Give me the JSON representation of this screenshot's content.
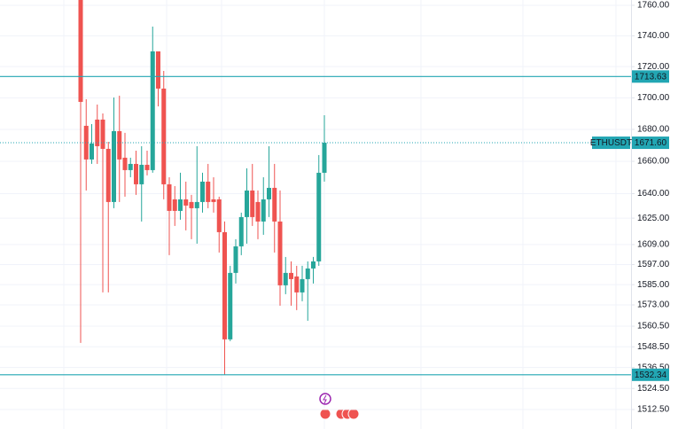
{
  "chart_data": {
    "type": "candlestick",
    "log_scale": true,
    "grid": true,
    "up_color": "#26a69a",
    "down_color": "#ef5350",
    "line_color": "#22a6b3",
    "ylim": [
      1501.5,
      1763.5
    ],
    "yticks": [
      {
        "value": 1760,
        "label": "1760.00"
      },
      {
        "value": 1740,
        "label": "1740.00"
      },
      {
        "value": 1720,
        "label": "1720.00"
      },
      {
        "value": 1700,
        "label": "1700.00"
      },
      {
        "value": 1680,
        "label": "1680.00"
      },
      {
        "value": 1660,
        "label": "1660.00"
      },
      {
        "value": 1640,
        "label": "1640.00"
      },
      {
        "value": 1625,
        "label": "1625.00"
      },
      {
        "value": 1609,
        "label": "1609.00"
      },
      {
        "value": 1597,
        "label": "1597.00"
      },
      {
        "value": 1585,
        "label": "1585.00"
      },
      {
        "value": 1573,
        "label": "1573.00"
      },
      {
        "value": 1560.5,
        "label": "1560.50"
      },
      {
        "value": 1548.5,
        "label": "1548.50"
      },
      {
        "value": 1536.5,
        "label": "1536.50"
      },
      {
        "value": 1524.5,
        "label": "1524.50"
      },
      {
        "value": 1512.5,
        "label": "1512.50"
      }
    ],
    "price_lines": [
      {
        "value": 1713.63,
        "style": "solid"
      },
      {
        "name": "ETHUSDT",
        "value": 1671.6,
        "label": "1671.60",
        "style": "dotted"
      },
      {
        "value": 1532.34,
        "style": "solid"
      }
    ],
    "open": [
      1763.5,
      1682.25,
      1661.15,
      1686.17,
      1686.17,
      1667.78,
      1634.87,
      1678.9,
      1662.25,
      1654.54,
      1658.39,
      1645.76,
      1657.84,
      1654.54,
      1729.85,
      1705.89,
      1645.76,
      1636.5,
      1629.44,
      1636.5,
      1634.87,
      1631.07,
      1634.87,
      1647.41,
      1636.5,
      1636.5,
      1616.5,
      1552.81,
      1591.99,
      1607.93,
      1625.66,
      1641.94,
      1634.87,
      1622.96,
      1636.5,
      1643.58,
      1622.96,
      1584.6,
      1591.99,
      1589.87,
      1580.39,
      1588.29,
      1594.63,
      1598.88,
      1652.89
    ],
    "high": [
      1763.5,
      1699.1,
      1683.37,
      1695.72,
      1690.09,
      1672.22,
      1700.23,
      1701.36,
      1677.79,
      1662.25,
      1666.67,
      1669.44,
      1666.67,
      1746.02,
      1729.85,
      1717.26,
      1650.14,
      1644.67,
      1652.89,
      1647.41,
      1639.22,
      1669.44,
      1652.89,
      1658.39,
      1650.14,
      1638.13,
      1622.96,
      1596.22,
      1612.21,
      1628.36,
      1655.64,
      1658.39,
      1641.94,
      1650.14,
      1669.44,
      1658.39,
      1641.94,
      1601.53,
      1598.88,
      1596.22,
      1596.22,
      1598.88,
      1601.53,
      1663.91,
      1688.97
    ],
    "low": [
      1550.75,
      1641.94,
      1658.39,
      1658.39,
      1580.39,
      1580.39,
      1631.07,
      1634.87,
      1638.13,
      1650.14,
      1639.22,
      1622.96,
      1651.24,
      1652.89,
      1694.59,
      1636.5,
      1602.6,
      1620.27,
      1624.04,
      1617.58,
      1612.21,
      1609.54,
      1628.36,
      1631.07,
      1628.36,
      1604.2,
      1532.34,
      1551.78,
      1585.65,
      1602.6,
      1609.54,
      1620.27,
      1612.21,
      1614.89,
      1625.66,
      1604.2,
      1572.54,
      1579.34,
      1572.54,
      1569.93,
      1575.15,
      1563.68,
      1585.65,
      1596.22,
      1647.41
    ],
    "close": [
      1697.41,
      1661.15,
      1671.11,
      1669.44,
      1667.78,
      1634.87,
      1678.9,
      1661.15,
      1654.54,
      1658.39,
      1645.76,
      1657.84,
      1654.54,
      1729.85,
      1705.89,
      1645.76,
      1629.44,
      1629.44,
      1636.5,
      1632.69,
      1631.07,
      1634.87,
      1647.41,
      1634.87,
      1634.87,
      1616.5,
      1552.81,
      1591.99,
      1607.93,
      1625.66,
      1641.94,
      1625.66,
      1622.96,
      1636.5,
      1643.58,
      1622.96,
      1584.6,
      1591.99,
      1588.29,
      1580.39,
      1588.29,
      1594.63,
      1598.88,
      1652.89,
      1671.6
    ]
  }
}
